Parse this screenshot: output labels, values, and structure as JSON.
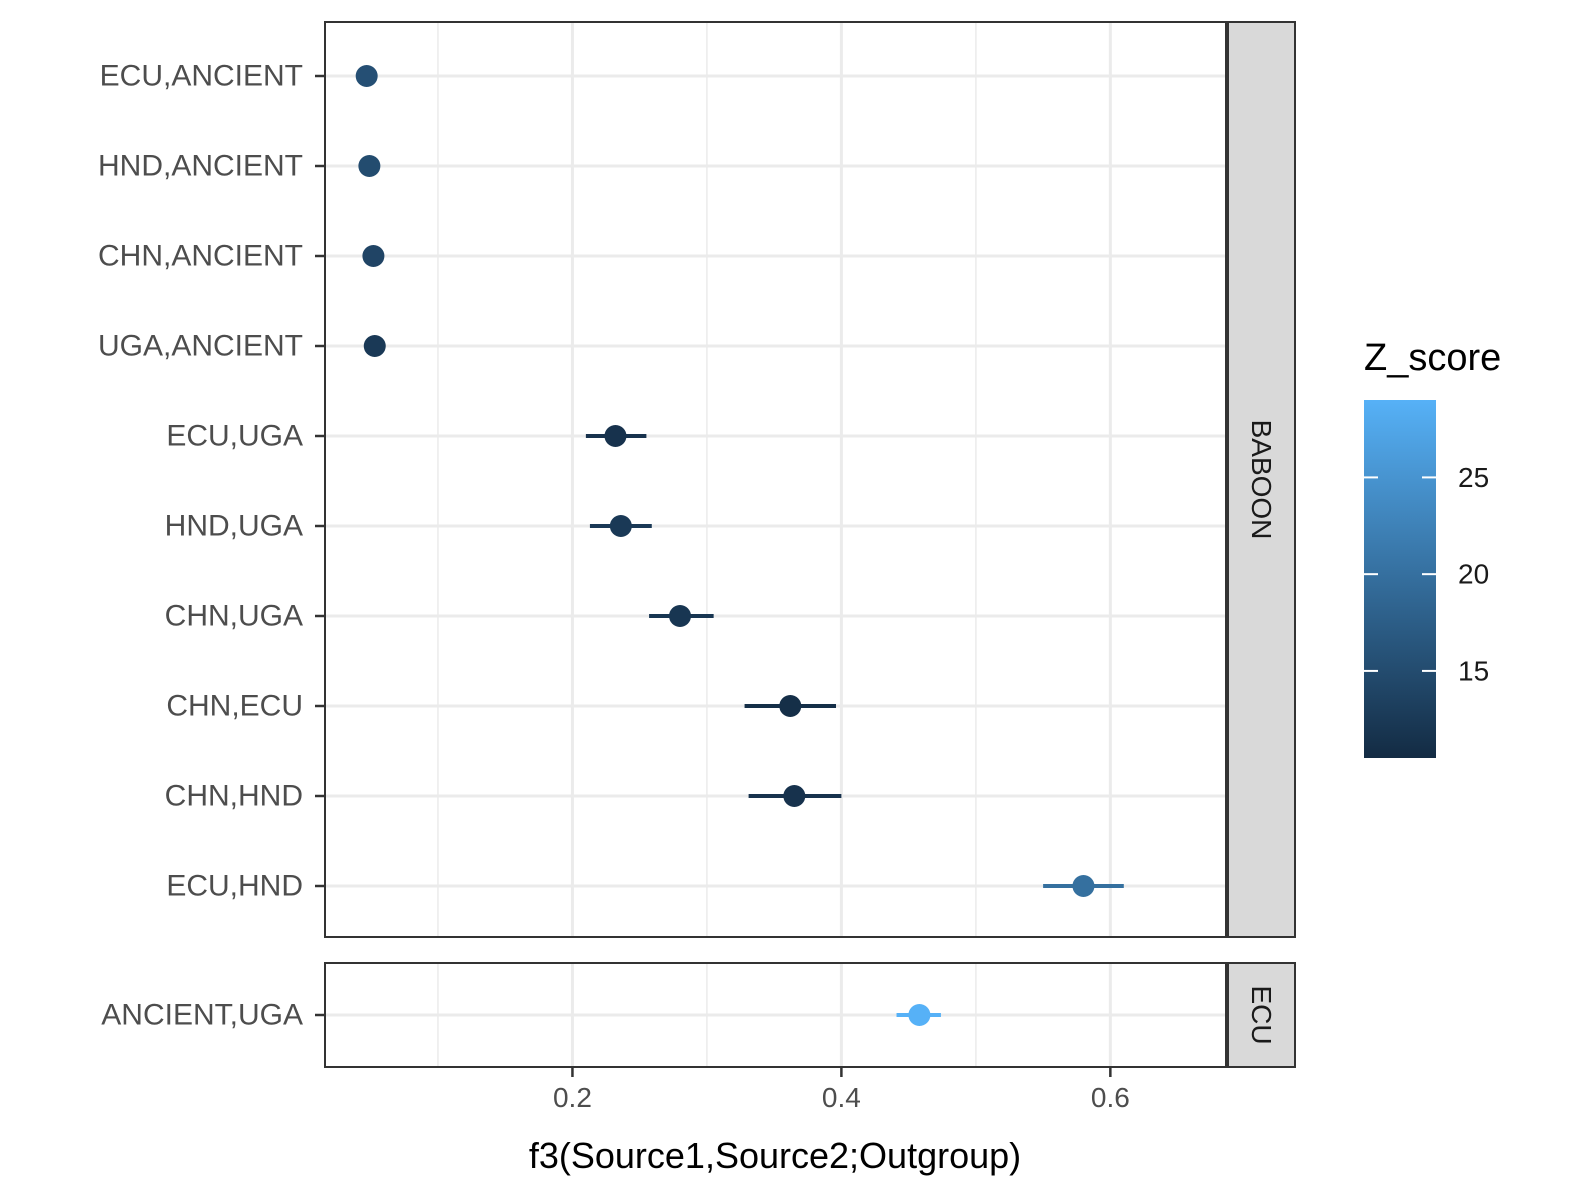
{
  "chart_data": {
    "type": "scatter",
    "subtype": "dot-plot with horizontal error bars, faceted",
    "xlabel": "f3(Source1,Source2;Outgroup)",
    "x_ticks": [
      "0.2",
      "0.4",
      "0.6"
    ],
    "x_tick_values": [
      0.2,
      0.4,
      0.6
    ],
    "xlim": [
      0.016,
      0.686
    ],
    "grid": true,
    "legend": {
      "title": "Z_score",
      "placement": "right",
      "type": "colorbar",
      "ticks": [
        "15",
        "20",
        "25"
      ],
      "tick_values": [
        15,
        20,
        25
      ],
      "range": [
        10.5,
        29
      ],
      "color_low": "#132B43",
      "color_high": "#56B1F7"
    },
    "facets": [
      {
        "label": "BABOON",
        "points": [
          {
            "label": "ECU,ANCIENT",
            "x": 0.047,
            "xmin": 0.047,
            "xmax": 0.047,
            "z": 15.5
          },
          {
            "label": "HND,ANCIENT",
            "x": 0.049,
            "xmin": 0.049,
            "xmax": 0.049,
            "z": 15.0
          },
          {
            "label": "CHN,ANCIENT",
            "x": 0.052,
            "xmin": 0.052,
            "xmax": 0.052,
            "z": 14.0
          },
          {
            "label": "UGA,ANCIENT",
            "x": 0.053,
            "xmin": 0.053,
            "xmax": 0.053,
            "z": 12.5
          },
          {
            "label": "ECU,UGA",
            "x": 0.232,
            "xmin": 0.21,
            "xmax": 0.255,
            "z": 11.5
          },
          {
            "label": "HND,UGA",
            "x": 0.236,
            "xmin": 0.213,
            "xmax": 0.259,
            "z": 12.5
          },
          {
            "label": "CHN,UGA",
            "x": 0.28,
            "xmin": 0.257,
            "xmax": 0.305,
            "z": 12.0
          },
          {
            "label": "CHN,ECU",
            "x": 0.362,
            "xmin": 0.328,
            "xmax": 0.396,
            "z": 11.0
          },
          {
            "label": "CHN,HND",
            "x": 0.365,
            "xmin": 0.331,
            "xmax": 0.4,
            "z": 11.5
          },
          {
            "label": "ECU,HND",
            "x": 0.58,
            "xmin": 0.55,
            "xmax": 0.61,
            "z": 20.0
          }
        ]
      },
      {
        "label": "ECU",
        "points": [
          {
            "label": "ANCIENT,UGA",
            "x": 0.458,
            "xmin": 0.441,
            "xmax": 0.474,
            "z": 29.0
          }
        ]
      }
    ]
  }
}
